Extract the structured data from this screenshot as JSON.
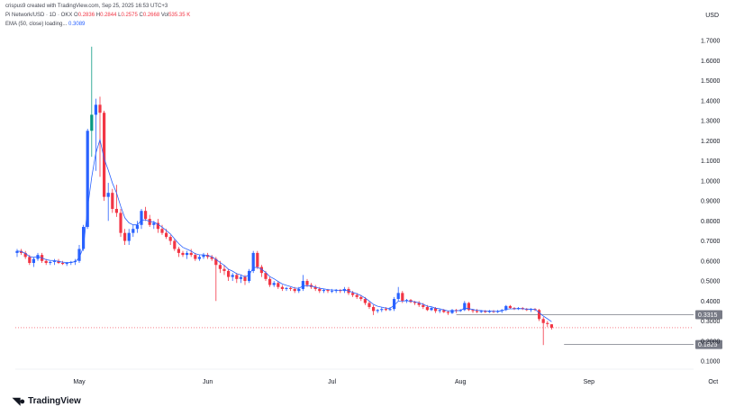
{
  "header": {
    "credit": "crispus9 created with TradingView.com, Sep 25, 2025 16:53 UTC+3",
    "symbol": "Pi Network/USD · 1D · OKX",
    "o_label": "O",
    "o_value": "0.2836",
    "h_label": "H",
    "h_value": "0.2844",
    "l_label": "L",
    "l_value": "0.2575",
    "c_label": "C",
    "c_value": "0.2668",
    "vol_label": "Vol",
    "vol_value": "535.35 K",
    "ema_label": "EMA (50, close) loading...",
    "ema_value": "0.3089"
  },
  "currency": "USD",
  "brand": "TradingView",
  "colors": {
    "up": "#2962ff",
    "down": "#f23645",
    "ema": "#2962ff",
    "spike": "#089981"
  },
  "chart_data": {
    "type": "candlestick",
    "title": "",
    "ylim": [
      0.05,
      1.8
    ],
    "yticks": [
      "0.1000",
      "0.2000",
      "0.3000",
      "0.4000",
      "0.5000",
      "0.6000",
      "0.7000",
      "0.8000",
      "0.9000",
      "1.0000",
      "1.1000",
      "1.2000",
      "1.3000",
      "1.4000",
      "1.5000",
      "1.6000",
      "1.7000"
    ],
    "xticks": [
      {
        "label": "May",
        "date": "2025-05-01"
      },
      {
        "label": "Jun",
        "date": "2025-06-01"
      },
      {
        "label": "Jul",
        "date": "2025-07-01"
      },
      {
        "label": "Aug",
        "date": "2025-08-01"
      },
      {
        "label": "Sep",
        "date": "2025-09-01"
      },
      {
        "label": "Oct",
        "date": "2025-10-01"
      }
    ],
    "start_date": "2025-04-16",
    "candles": [
      [
        0.64,
        0.66,
        0.62,
        0.65
      ],
      [
        0.65,
        0.66,
        0.63,
        0.64
      ],
      [
        0.64,
        0.65,
        0.61,
        0.62
      ],
      [
        0.62,
        0.63,
        0.58,
        0.59
      ],
      [
        0.59,
        0.62,
        0.57,
        0.61
      ],
      [
        0.61,
        0.64,
        0.6,
        0.63
      ],
      [
        0.63,
        0.64,
        0.59,
        0.6
      ],
      [
        0.6,
        0.61,
        0.58,
        0.59
      ],
      [
        0.59,
        0.6,
        0.58,
        0.595
      ],
      [
        0.595,
        0.61,
        0.58,
        0.6
      ],
      [
        0.6,
        0.61,
        0.585,
        0.59
      ],
      [
        0.59,
        0.6,
        0.58,
        0.585
      ],
      [
        0.585,
        0.595,
        0.575,
        0.59
      ],
      [
        0.59,
        0.6,
        0.58,
        0.595
      ],
      [
        0.595,
        0.61,
        0.58,
        0.6
      ],
      [
        0.6,
        0.68,
        0.59,
        0.66
      ],
      [
        0.66,
        0.78,
        0.65,
        0.77
      ],
      [
        0.77,
        1.26,
        0.76,
        1.25
      ],
      [
        1.25,
        1.67,
        1.12,
        1.33
      ],
      [
        1.33,
        1.41,
        1.05,
        1.38
      ],
      [
        1.38,
        1.42,
        1.02,
        1.34
      ],
      [
        1.34,
        1.35,
        0.9,
        0.92
      ],
      [
        0.92,
        0.99,
        0.8,
        0.94
      ],
      [
        0.94,
        0.96,
        0.84,
        0.86
      ],
      [
        0.86,
        0.98,
        0.82,
        0.84
      ],
      [
        0.84,
        0.86,
        0.72,
        0.74
      ],
      [
        0.74,
        0.76,
        0.68,
        0.7
      ],
      [
        0.7,
        0.76,
        0.68,
        0.74
      ],
      [
        0.74,
        0.78,
        0.72,
        0.76
      ],
      [
        0.76,
        0.8,
        0.74,
        0.78
      ],
      [
        0.78,
        0.86,
        0.76,
        0.85
      ],
      [
        0.85,
        0.87,
        0.8,
        0.81
      ],
      [
        0.81,
        0.83,
        0.77,
        0.78
      ],
      [
        0.78,
        0.8,
        0.76,
        0.79
      ],
      [
        0.79,
        0.81,
        0.74,
        0.76
      ],
      [
        0.76,
        0.78,
        0.73,
        0.74
      ],
      [
        0.74,
        0.76,
        0.71,
        0.72
      ],
      [
        0.72,
        0.73,
        0.68,
        0.7
      ],
      [
        0.7,
        0.71,
        0.65,
        0.66
      ],
      [
        0.66,
        0.67,
        0.62,
        0.64
      ],
      [
        0.64,
        0.65,
        0.62,
        0.63
      ],
      [
        0.63,
        0.65,
        0.61,
        0.64
      ],
      [
        0.64,
        0.66,
        0.62,
        0.63
      ],
      [
        0.63,
        0.64,
        0.6,
        0.61
      ],
      [
        0.61,
        0.63,
        0.6,
        0.62
      ],
      [
        0.62,
        0.64,
        0.61,
        0.63
      ],
      [
        0.63,
        0.64,
        0.61,
        0.62
      ],
      [
        0.62,
        0.63,
        0.6,
        0.61
      ],
      [
        0.61,
        0.62,
        0.4,
        0.58
      ],
      [
        0.58,
        0.6,
        0.54,
        0.56
      ],
      [
        0.56,
        0.58,
        0.53,
        0.55
      ],
      [
        0.55,
        0.56,
        0.5,
        0.52
      ],
      [
        0.52,
        0.54,
        0.5,
        0.53
      ],
      [
        0.53,
        0.54,
        0.49,
        0.51
      ],
      [
        0.51,
        0.53,
        0.49,
        0.52
      ],
      [
        0.52,
        0.53,
        0.48,
        0.5
      ],
      [
        0.5,
        0.56,
        0.49,
        0.55
      ],
      [
        0.55,
        0.65,
        0.54,
        0.64
      ],
      [
        0.64,
        0.65,
        0.56,
        0.57
      ],
      [
        0.57,
        0.58,
        0.52,
        0.54
      ],
      [
        0.54,
        0.55,
        0.5,
        0.51
      ],
      [
        0.51,
        0.52,
        0.47,
        0.48
      ],
      [
        0.48,
        0.5,
        0.47,
        0.49
      ],
      [
        0.49,
        0.5,
        0.46,
        0.47
      ],
      [
        0.47,
        0.48,
        0.45,
        0.46
      ],
      [
        0.46,
        0.47,
        0.45,
        0.465
      ],
      [
        0.465,
        0.47,
        0.45,
        0.46
      ],
      [
        0.46,
        0.47,
        0.44,
        0.45
      ],
      [
        0.45,
        0.47,
        0.44,
        0.46
      ],
      [
        0.46,
        0.53,
        0.45,
        0.5
      ],
      [
        0.5,
        0.51,
        0.47,
        0.48
      ],
      [
        0.48,
        0.49,
        0.46,
        0.47
      ],
      [
        0.47,
        0.48,
        0.45,
        0.46
      ],
      [
        0.46,
        0.47,
        0.44,
        0.45
      ],
      [
        0.45,
        0.46,
        0.44,
        0.455
      ],
      [
        0.455,
        0.46,
        0.44,
        0.45
      ],
      [
        0.45,
        0.46,
        0.44,
        0.45
      ],
      [
        0.45,
        0.46,
        0.44,
        0.455
      ],
      [
        0.455,
        0.46,
        0.44,
        0.45
      ],
      [
        0.45,
        0.47,
        0.44,
        0.46
      ],
      [
        0.46,
        0.47,
        0.43,
        0.44
      ],
      [
        0.44,
        0.45,
        0.42,
        0.43
      ],
      [
        0.43,
        0.44,
        0.41,
        0.42
      ],
      [
        0.42,
        0.43,
        0.4,
        0.41
      ],
      [
        0.41,
        0.42,
        0.38,
        0.39
      ],
      [
        0.39,
        0.4,
        0.36,
        0.37
      ],
      [
        0.37,
        0.38,
        0.33,
        0.35
      ],
      [
        0.35,
        0.36,
        0.34,
        0.355
      ],
      [
        0.355,
        0.37,
        0.345,
        0.36
      ],
      [
        0.36,
        0.37,
        0.35,
        0.355
      ],
      [
        0.355,
        0.37,
        0.35,
        0.36
      ],
      [
        0.36,
        0.42,
        0.35,
        0.41
      ],
      [
        0.41,
        0.47,
        0.4,
        0.44
      ],
      [
        0.44,
        0.45,
        0.39,
        0.4
      ],
      [
        0.4,
        0.41,
        0.39,
        0.405
      ],
      [
        0.405,
        0.41,
        0.39,
        0.395
      ],
      [
        0.395,
        0.4,
        0.38,
        0.39
      ],
      [
        0.39,
        0.4,
        0.37,
        0.38
      ],
      [
        0.38,
        0.39,
        0.36,
        0.37
      ],
      [
        0.37,
        0.38,
        0.35,
        0.355
      ],
      [
        0.355,
        0.37,
        0.35,
        0.365
      ],
      [
        0.365,
        0.37,
        0.34,
        0.35
      ],
      [
        0.35,
        0.36,
        0.34,
        0.355
      ],
      [
        0.355,
        0.36,
        0.34,
        0.345
      ],
      [
        0.345,
        0.35,
        0.33,
        0.34
      ],
      [
        0.34,
        0.36,
        0.335,
        0.355
      ],
      [
        0.355,
        0.36,
        0.34,
        0.35
      ],
      [
        0.35,
        0.36,
        0.345,
        0.355
      ],
      [
        0.355,
        0.4,
        0.35,
        0.39
      ],
      [
        0.39,
        0.395,
        0.35,
        0.355
      ],
      [
        0.355,
        0.36,
        0.34,
        0.35
      ],
      [
        0.35,
        0.36,
        0.34,
        0.345
      ],
      [
        0.345,
        0.355,
        0.34,
        0.35
      ],
      [
        0.35,
        0.355,
        0.34,
        0.345
      ],
      [
        0.345,
        0.355,
        0.34,
        0.35
      ],
      [
        0.35,
        0.355,
        0.34,
        0.345
      ],
      [
        0.345,
        0.355,
        0.34,
        0.35
      ],
      [
        0.35,
        0.36,
        0.34,
        0.355
      ],
      [
        0.355,
        0.38,
        0.35,
        0.375
      ],
      [
        0.375,
        0.38,
        0.36,
        0.365
      ],
      [
        0.365,
        0.37,
        0.355,
        0.36
      ],
      [
        0.36,
        0.37,
        0.355,
        0.365
      ],
      [
        0.365,
        0.37,
        0.355,
        0.36
      ],
      [
        0.36,
        0.365,
        0.35,
        0.355
      ],
      [
        0.355,
        0.365,
        0.345,
        0.36
      ],
      [
        0.36,
        0.365,
        0.35,
        0.355
      ],
      [
        0.355,
        0.36,
        0.3,
        0.31
      ],
      [
        0.31,
        0.32,
        0.18,
        0.29
      ],
      [
        0.29,
        0.3,
        0.27,
        0.285
      ],
      [
        0.2836,
        0.2844,
        0.2575,
        0.2668
      ]
    ],
    "ema_last": 0.3089,
    "hlines": [
      {
        "price": 0.3315,
        "label": "0.3315",
        "from": "2025-07-31",
        "to": "2025-09-25"
      },
      {
        "price": 0.1825,
        "label": "0.1825",
        "from": "2025-08-26",
        "to": "2025-09-25"
      }
    ],
    "last_price": 0.2668
  }
}
